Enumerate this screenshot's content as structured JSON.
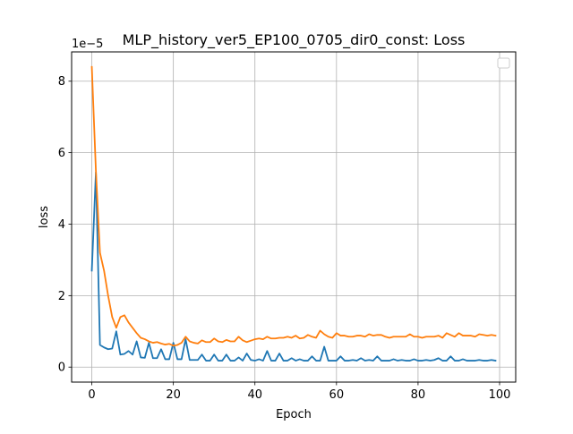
{
  "chart_data": {
    "type": "line",
    "title": "MLP_history_ver5_EP100_0705_dir0_const: Loss",
    "xlabel": "Epoch",
    "ylabel": "loss",
    "y_offset_label": "1e−5",
    "xlim": [
      -4.95,
      103.95
    ],
    "ylim": [
      -0.42,
      8.82
    ],
    "x_ticks": [
      0,
      20,
      40,
      60,
      80,
      100
    ],
    "x_tick_labels": [
      "0",
      "20",
      "40",
      "60",
      "80",
      "100"
    ],
    "y_ticks": [
      0,
      2,
      4,
      6,
      8
    ],
    "y_tick_labels": [
      "0",
      "2",
      "4",
      "6",
      "8"
    ],
    "grid": true,
    "legend": {
      "placement": "upper-right",
      "entries": []
    },
    "colors": {
      "series_1": "#1f77b4",
      "series_2": "#ff7f0e",
      "grid": "#b0b0b0"
    },
    "x": [
      0,
      1,
      2,
      3,
      4,
      5,
      6,
      7,
      8,
      9,
      10,
      11,
      12,
      13,
      14,
      15,
      16,
      17,
      18,
      19,
      20,
      21,
      22,
      23,
      24,
      25,
      26,
      27,
      28,
      29,
      30,
      31,
      32,
      33,
      34,
      35,
      36,
      37,
      38,
      39,
      40,
      41,
      42,
      43,
      44,
      45,
      46,
      47,
      48,
      49,
      50,
      51,
      52,
      53,
      54,
      55,
      56,
      57,
      58,
      59,
      60,
      61,
      62,
      63,
      64,
      65,
      66,
      67,
      68,
      69,
      70,
      71,
      72,
      73,
      74,
      75,
      76,
      77,
      78,
      79,
      80,
      81,
      82,
      83,
      84,
      85,
      86,
      87,
      88,
      89,
      90,
      91,
      92,
      93,
      94,
      95,
      96,
      97,
      98,
      99
    ],
    "series": [
      {
        "values": [
          2.7,
          5.45,
          0.62,
          0.55,
          0.5,
          0.52,
          1.0,
          0.35,
          0.37,
          0.45,
          0.35,
          0.72,
          0.27,
          0.26,
          0.68,
          0.25,
          0.25,
          0.5,
          0.22,
          0.22,
          0.68,
          0.22,
          0.22,
          0.78,
          0.2,
          0.2,
          0.2,
          0.35,
          0.18,
          0.18,
          0.35,
          0.18,
          0.18,
          0.35,
          0.18,
          0.18,
          0.27,
          0.18,
          0.38,
          0.2,
          0.18,
          0.22,
          0.18,
          0.45,
          0.18,
          0.18,
          0.38,
          0.18,
          0.18,
          0.25,
          0.18,
          0.22,
          0.18,
          0.18,
          0.3,
          0.18,
          0.18,
          0.57,
          0.18,
          0.18,
          0.18,
          0.3,
          0.18,
          0.18,
          0.2,
          0.18,
          0.25,
          0.18,
          0.2,
          0.18,
          0.3,
          0.18,
          0.18,
          0.18,
          0.22,
          0.18,
          0.2,
          0.18,
          0.18,
          0.22,
          0.18,
          0.18,
          0.2,
          0.18,
          0.2,
          0.25,
          0.18,
          0.18,
          0.3,
          0.18,
          0.18,
          0.22,
          0.18,
          0.18,
          0.18,
          0.2,
          0.18,
          0.18,
          0.2,
          0.18
        ]
      },
      {
        "values": [
          8.4,
          5.5,
          3.2,
          2.7,
          2.0,
          1.4,
          1.1,
          1.4,
          1.45,
          1.25,
          1.1,
          0.95,
          0.82,
          0.78,
          0.72,
          0.68,
          0.7,
          0.66,
          0.63,
          0.65,
          0.6,
          0.62,
          0.68,
          0.85,
          0.72,
          0.68,
          0.66,
          0.75,
          0.7,
          0.7,
          0.8,
          0.72,
          0.7,
          0.76,
          0.72,
          0.72,
          0.85,
          0.75,
          0.7,
          0.74,
          0.78,
          0.8,
          0.78,
          0.85,
          0.8,
          0.8,
          0.82,
          0.82,
          0.85,
          0.82,
          0.88,
          0.8,
          0.82,
          0.9,
          0.85,
          0.82,
          1.02,
          0.92,
          0.85,
          0.82,
          0.95,
          0.88,
          0.88,
          0.85,
          0.85,
          0.88,
          0.88,
          0.85,
          0.92,
          0.88,
          0.9,
          0.9,
          0.85,
          0.82,
          0.85,
          0.85,
          0.85,
          0.85,
          0.92,
          0.85,
          0.85,
          0.82,
          0.85,
          0.85,
          0.85,
          0.88,
          0.82,
          0.95,
          0.9,
          0.85,
          0.95,
          0.88,
          0.88,
          0.88,
          0.85,
          0.92,
          0.9,
          0.88,
          0.9,
          0.88
        ]
      }
    ]
  }
}
